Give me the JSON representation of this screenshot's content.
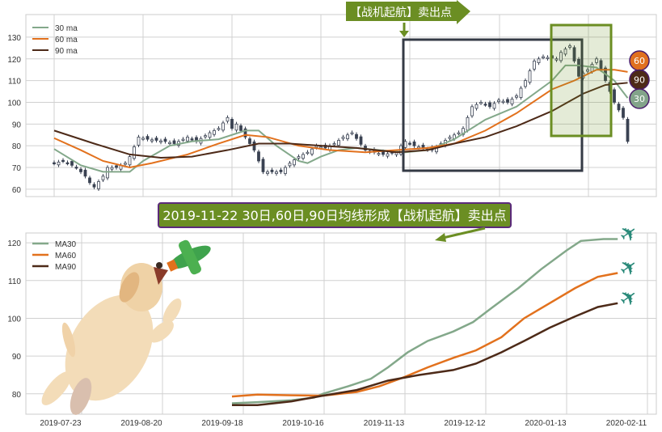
{
  "banner_top": {
    "text": "【战机起航】卖出点",
    "color": "#6b8e23"
  },
  "banner_bottom": {
    "text": "2019-11-22 30日,60日,90日均线形成【战机起航】卖出点",
    "color": "#6b8e23",
    "border": "#5b2a7a"
  },
  "badges": [
    {
      "label": "60",
      "color": "#e0701e"
    },
    {
      "label": "90",
      "color": "#4d2a18"
    },
    {
      "label": "30",
      "color": "#83a48a"
    }
  ],
  "colors": {
    "ma30": "#83a88a",
    "ma60": "#e2711d",
    "ma90": "#4d2a18",
    "candle": "#3a4252",
    "box": "#343a45",
    "highlight": "#6b8e23"
  },
  "chart_data": [
    {
      "type": "line",
      "title": "",
      "ylim": [
        56.6,
        140.4
      ],
      "xlim": [
        0,
        130
      ],
      "yticks": [
        60,
        70,
        80,
        90,
        100,
        110,
        120,
        130
      ],
      "grid": true,
      "legend_position": "top-left",
      "legend": [
        "30 ma",
        "60 ma",
        "90 ma"
      ],
      "candles_close": [
        [
          0,
          72
        ],
        [
          1,
          73
        ],
        [
          3,
          70
        ],
        [
          6,
          66
        ],
        [
          8,
          63
        ],
        [
          9,
          61
        ],
        [
          10,
          66
        ],
        [
          12,
          70
        ],
        [
          13,
          70
        ],
        [
          15,
          72
        ],
        [
          17,
          75
        ],
        [
          18,
          84
        ],
        [
          20,
          83
        ],
        [
          22,
          82
        ],
        [
          26,
          81
        ],
        [
          28,
          84
        ],
        [
          31,
          82
        ],
        [
          33,
          86
        ],
        [
          36,
          88
        ],
        [
          38,
          93
        ],
        [
          40,
          88
        ],
        [
          41,
          90
        ],
        [
          42,
          84
        ],
        [
          44,
          78
        ],
        [
          46,
          68
        ],
        [
          48,
          68
        ],
        [
          50,
          68
        ],
        [
          52,
          72
        ],
        [
          54,
          75
        ],
        [
          56,
          77
        ],
        [
          58,
          80
        ],
        [
          60,
          79
        ],
        [
          62,
          81
        ],
        [
          64,
          84
        ],
        [
          66,
          86
        ],
        [
          68,
          78
        ],
        [
          71,
          77
        ],
        [
          73,
          76
        ],
        [
          75,
          77
        ],
        [
          78,
          80
        ],
        [
          79,
          82
        ],
        [
          80,
          80
        ],
        [
          82,
          79
        ],
        [
          84,
          78
        ],
        [
          86,
          81
        ],
        [
          88,
          84
        ],
        [
          90,
          86
        ],
        [
          92,
          88
        ],
        [
          93,
          98
        ],
        [
          95,
          100
        ],
        [
          97,
          98
        ],
        [
          99,
          101
        ],
        [
          101,
          100
        ],
        [
          103,
          103
        ],
        [
          105,
          110
        ],
        [
          107,
          119
        ],
        [
          109,
          121
        ],
        [
          111,
          120
        ],
        [
          114,
          123
        ],
        [
          115,
          126
        ],
        [
          117,
          112
        ],
        [
          119,
          115
        ],
        [
          121,
          120
        ],
        [
          123,
          110
        ],
        [
          125,
          100
        ],
        [
          127,
          93
        ],
        [
          129,
          82
        ]
      ],
      "series": [
        {
          "name": "30 ma",
          "points": [
            [
              0,
              78.5
            ],
            [
              6,
              71
            ],
            [
              11,
              68
            ],
            [
              17,
              68
            ],
            [
              20,
              73
            ],
            [
              26,
              80
            ],
            [
              31,
              82
            ],
            [
              37,
              83
            ],
            [
              43,
              87
            ],
            [
              46,
              87
            ],
            [
              50,
              80
            ],
            [
              55,
              73
            ],
            [
              57,
              72
            ],
            [
              60,
              75
            ],
            [
              64,
              78
            ],
            [
              68,
              79
            ],
            [
              73,
              78
            ],
            [
              79,
              77
            ],
            [
              84,
              78
            ],
            [
              90,
              83
            ],
            [
              97,
              92
            ],
            [
              104,
              98
            ],
            [
              112,
              110
            ],
            [
              115,
              117
            ],
            [
              118,
              117
            ],
            [
              122,
              116
            ],
            [
              126,
              110
            ],
            [
              129,
              102
            ]
          ]
        },
        {
          "name": "60 ma",
          "points": [
            [
              0,
              83.5
            ],
            [
              6,
              78
            ],
            [
              11,
              73
            ],
            [
              17,
              70
            ],
            [
              22,
              72
            ],
            [
              30,
              76
            ],
            [
              37,
              81
            ],
            [
              43,
              85
            ],
            [
              48,
              84
            ],
            [
              55,
              80
            ],
            [
              62,
              78
            ],
            [
              70,
              77
            ],
            [
              77,
              78
            ],
            [
              84,
              79
            ],
            [
              90,
              81
            ],
            [
              97,
              87
            ],
            [
              104,
              95
            ],
            [
              112,
              106
            ],
            [
              117,
              110
            ],
            [
              122,
              115
            ],
            [
              126,
              115
            ],
            [
              129,
              114
            ]
          ]
        },
        {
          "name": "90 ma",
          "points": [
            [
              0,
              87
            ],
            [
              9,
              81
            ],
            [
              17,
              76
            ],
            [
              24,
              74.5
            ],
            [
              31,
              75
            ],
            [
              39,
              78
            ],
            [
              46,
              81
            ],
            [
              53,
              81
            ],
            [
              60,
              80
            ],
            [
              68,
              79
            ],
            [
              77,
              77
            ],
            [
              84,
              78
            ],
            [
              90,
              81
            ],
            [
              97,
              84
            ],
            [
              104,
              89
            ],
            [
              112,
              96
            ],
            [
              119,
              104
            ],
            [
              124,
              108
            ],
            [
              129,
              109
            ]
          ]
        }
      ]
    },
    {
      "type": "line",
      "title": "",
      "ylim": [
        74.6,
        122.6
      ],
      "yticks": [
        80,
        90,
        100,
        110,
        120
      ],
      "xtick_labels": [
        "2019-07-23",
        "2019-08-20",
        "2019-09-18",
        "2019-10-16",
        "2019-11-13",
        "2019-12-12",
        "2020-01-13",
        "2020-02-11"
      ],
      "x_unit": "days since 2019-07-23",
      "grid": true,
      "legend_position": "top-left",
      "legend": [
        "MA30",
        "MA60",
        "MA90"
      ],
      "series": [
        {
          "name": "MA30",
          "points": [
            [
              53,
              77.5
            ],
            [
              62,
              77.8
            ],
            [
              74,
              78.3
            ],
            [
              82,
              79
            ],
            [
              85,
              80
            ],
            [
              94,
              82
            ],
            [
              102,
              84
            ],
            [
              108,
              87
            ],
            [
              115,
              91
            ],
            [
              122,
              94
            ],
            [
              131,
              96.5
            ],
            [
              138,
              99
            ],
            [
              145,
              103
            ],
            [
              154,
              108
            ],
            [
              162,
              113
            ],
            [
              171,
              118
            ],
            [
              176,
              120.5
            ],
            [
              184,
              121
            ],
            [
              189,
              121
            ]
          ]
        },
        {
          "name": "MA60",
          "points": [
            [
              53,
              79.3
            ],
            [
              62,
              79.8
            ],
            [
              74,
              79.6
            ],
            [
              85,
              79.5
            ],
            [
              97,
              80.5
            ],
            [
              105,
              82
            ],
            [
              114,
              84.5
            ],
            [
              122,
              87
            ],
            [
              131,
              89.5
            ],
            [
              139,
              91.5
            ],
            [
              148,
              95
            ],
            [
              156,
              100
            ],
            [
              165,
              104
            ],
            [
              174,
              108
            ],
            [
              182,
              111
            ],
            [
              189,
              112
            ]
          ]
        },
        {
          "name": "MA90",
          "points": [
            [
              53,
              77
            ],
            [
              62,
              77
            ],
            [
              74,
              78
            ],
            [
              85,
              79.5
            ],
            [
              97,
              81
            ],
            [
              108,
              83.5
            ],
            [
              119,
              85
            ],
            [
              131,
              86.3
            ],
            [
              139,
              88
            ],
            [
              148,
              91
            ],
            [
              156,
              94
            ],
            [
              165,
              97.5
            ],
            [
              174,
              100.5
            ],
            [
              182,
              103
            ],
            [
              189,
              104
            ]
          ]
        }
      ]
    }
  ]
}
